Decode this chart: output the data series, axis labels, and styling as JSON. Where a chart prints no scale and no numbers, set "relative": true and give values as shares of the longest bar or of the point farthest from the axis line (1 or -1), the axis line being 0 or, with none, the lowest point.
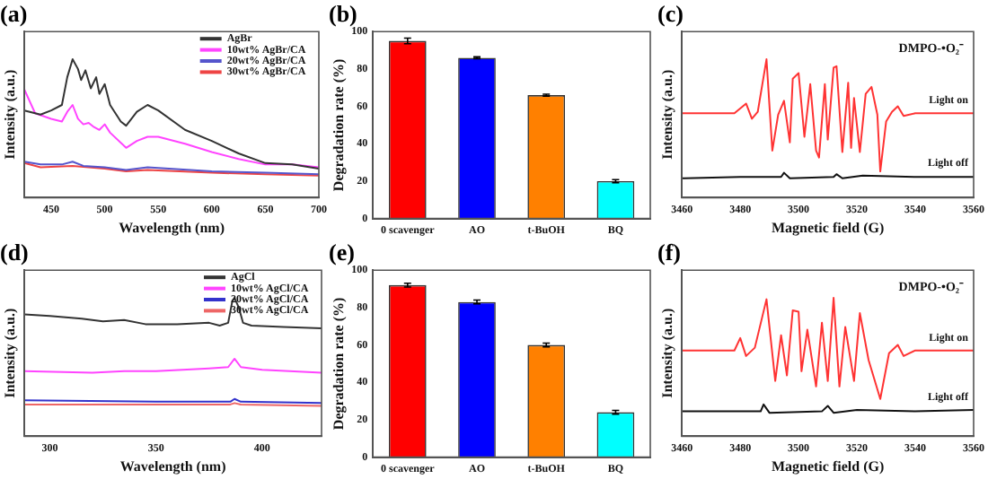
{
  "chart_data": [
    {
      "type": "line",
      "title": "(a)",
      "xlabel": "Wavelength (nm)",
      "ylabel": "Intensity (a.u.)",
      "relative": true,
      "xlim": [
        425,
        700
      ],
      "xticks": [
        450,
        500,
        550,
        600,
        650,
        700
      ],
      "legend": "top right",
      "marker": "none",
      "series": [
        {
          "name": "AgBr",
          "color": "#333333",
          "x": [
            425,
            440,
            450,
            460,
            465,
            470,
            475,
            478,
            482,
            487,
            492,
            495,
            500,
            505,
            515,
            520,
            530,
            540,
            550,
            575,
            600,
            625,
            650,
            675,
            700
          ],
          "values": [
            0.63,
            0.6,
            0.63,
            0.67,
            0.87,
            1.0,
            0.93,
            0.85,
            0.92,
            0.79,
            0.87,
            0.75,
            0.82,
            0.67,
            0.55,
            0.52,
            0.62,
            0.67,
            0.63,
            0.49,
            0.41,
            0.32,
            0.25,
            0.24,
            0.21
          ]
        },
        {
          "name": "10wt% AgBr/CA",
          "color": "#ff44ff",
          "x": [
            425,
            435,
            450,
            460,
            465,
            470,
            475,
            480,
            485,
            490,
            495,
            500,
            505,
            520,
            530,
            540,
            550,
            575,
            600,
            625,
            650,
            675,
            700
          ],
          "values": [
            0.78,
            0.61,
            0.57,
            0.55,
            0.62,
            0.67,
            0.57,
            0.53,
            0.54,
            0.51,
            0.49,
            0.53,
            0.47,
            0.36,
            0.41,
            0.44,
            0.44,
            0.39,
            0.33,
            0.28,
            0.24,
            0.24,
            0.22
          ]
        },
        {
          "name": "20wt% AgBr/CA",
          "color": "#5555cc",
          "x": [
            425,
            440,
            460,
            470,
            480,
            500,
            520,
            540,
            560,
            600,
            650,
            700
          ],
          "values": [
            0.26,
            0.24,
            0.24,
            0.26,
            0.23,
            0.22,
            0.2,
            0.22,
            0.21,
            0.19,
            0.18,
            0.17
          ]
        },
        {
          "name": "30wt% AgBr/CA",
          "color": "#ee4444",
          "x": [
            425,
            440,
            470,
            500,
            520,
            540,
            600,
            650,
            700
          ],
          "values": [
            0.25,
            0.22,
            0.23,
            0.21,
            0.19,
            0.2,
            0.18,
            0.17,
            0.16
          ]
        }
      ]
    },
    {
      "type": "bar",
      "title": "(b)",
      "ylabel": "Degradation rate (%)",
      "categories": [
        "0 scavenger",
        "AO",
        "t-BuOH",
        "BQ"
      ],
      "values": [
        95,
        86,
        66,
        20
      ],
      "errors": [
        1.5,
        0.5,
        0.5,
        0.8
      ],
      "colors": [
        "#ff0000",
        "#0000ff",
        "#ff8000",
        "#00ffff"
      ],
      "ylim": [
        0,
        100
      ],
      "yticks": [
        0,
        20,
        40,
        60,
        80,
        100
      ]
    },
    {
      "type": "line",
      "title": "(c)",
      "xlabel": "Magnetic field (G)",
      "ylabel": "Intensity (a.u.)",
      "relative": true,
      "xlim": [
        3460,
        3560
      ],
      "xticks": [
        3460,
        3480,
        3500,
        3520,
        3540,
        3560
      ],
      "marker": "none",
      "annotations": [
        "DMPO-•O₂⁻"
      ],
      "series": [
        {
          "name": "Light on",
          "color": "#ff3333",
          "x": [
            3460,
            3478,
            3482,
            3484,
            3486,
            3489,
            3491,
            3493,
            3495,
            3497,
            3498,
            3500,
            3502,
            3504,
            3506,
            3507,
            3509,
            3510,
            3512,
            3513,
            3515,
            3517,
            3518,
            3519,
            3521,
            3523,
            3525,
            3527,
            3528,
            3530,
            3532,
            3534,
            3536,
            3540,
            3560
          ],
          "values": [
            0.61,
            0.61,
            0.68,
            0.57,
            0.62,
            1.0,
            0.34,
            0.6,
            0.7,
            0.4,
            0.86,
            0.9,
            0.44,
            0.82,
            0.34,
            0.29,
            0.82,
            0.42,
            0.94,
            0.95,
            0.33,
            0.83,
            0.36,
            0.72,
            0.33,
            0.75,
            0.8,
            0.6,
            0.19,
            0.55,
            0.62,
            0.66,
            0.59,
            0.61,
            0.61
          ]
        },
        {
          "name": "Light off",
          "color": "#111111",
          "x": [
            3460,
            3480,
            3494,
            3495,
            3497,
            3512,
            3513,
            3515,
            3522,
            3540,
            3560
          ],
          "values": [
            0.14,
            0.15,
            0.15,
            0.18,
            0.14,
            0.15,
            0.17,
            0.14,
            0.16,
            0.15,
            0.15
          ]
        }
      ]
    },
    {
      "type": "line",
      "title": "(d)",
      "xlabel": "Wavelength (nm)",
      "ylabel": "Intensity (a.u.)",
      "relative": true,
      "xlim": [
        288,
        428
      ],
      "xticks": [
        300,
        350,
        400
      ],
      "legend": "top right",
      "marker": "none",
      "series": [
        {
          "name": "AgCl",
          "color": "#333333",
          "x": [
            288,
            300,
            315,
            325,
            335,
            345,
            360,
            375,
            380,
            384,
            386,
            387,
            389,
            391,
            395,
            410,
            428
          ],
          "values": [
            0.88,
            0.87,
            0.85,
            0.83,
            0.84,
            0.81,
            0.81,
            0.82,
            0.8,
            0.82,
            0.98,
            1.0,
            0.93,
            0.82,
            0.8,
            0.79,
            0.78
          ]
        },
        {
          "name": "10wt% AgCl/CA",
          "color": "#ff44ff",
          "x": [
            288,
            320,
            335,
            350,
            375,
            384,
            387,
            390,
            400,
            428
          ],
          "values": [
            0.47,
            0.46,
            0.47,
            0.47,
            0.49,
            0.5,
            0.56,
            0.5,
            0.48,
            0.46
          ]
        },
        {
          "name": "20wt% AgCl/CA",
          "color": "#3333cc",
          "x": [
            288,
            350,
            385,
            387,
            390,
            428
          ],
          "values": [
            0.26,
            0.25,
            0.25,
            0.27,
            0.25,
            0.24
          ]
        },
        {
          "name": "30wt% AgCl/CA",
          "color": "#ee6666",
          "x": [
            288,
            350,
            385,
            387,
            390,
            428
          ],
          "values": [
            0.23,
            0.23,
            0.23,
            0.24,
            0.23,
            0.22
          ]
        }
      ]
    },
    {
      "type": "bar",
      "title": "(e)",
      "ylabel": "Degradation rate (%)",
      "categories": [
        "0 scavenger",
        "AO",
        "t-BuOH",
        "BQ"
      ],
      "values": [
        92,
        83,
        60,
        24
      ],
      "errors": [
        1,
        1,
        1,
        1
      ],
      "colors": [
        "#ff0000",
        "#0000ff",
        "#ff8000",
        "#00ffff"
      ],
      "ylim": [
        0,
        100
      ],
      "yticks": [
        0,
        20,
        40,
        60,
        80,
        100
      ]
    },
    {
      "type": "line",
      "title": "(f)",
      "xlabel": "Magnetic field (G)",
      "ylabel": "Intensity (a.u.)",
      "relative": true,
      "xlim": [
        3460,
        3560
      ],
      "xticks": [
        3460,
        3480,
        3500,
        3520,
        3540,
        3560
      ],
      "marker": "none",
      "annotations": [
        "DMPO-•O₂⁻"
      ],
      "series": [
        {
          "name": "Light on",
          "color": "#ff3333",
          "x": [
            3460,
            3478,
            3480,
            3482,
            3485,
            3489,
            3492,
            3494,
            3496,
            3498,
            3500,
            3501,
            3503,
            3506,
            3508,
            3510,
            3512,
            3514,
            3516,
            3519,
            3521,
            3524,
            3528,
            3531,
            3534,
            3536,
            3540,
            3560
          ],
          "values": [
            0.62,
            0.62,
            0.71,
            0.58,
            0.64,
            0.99,
            0.4,
            0.73,
            0.44,
            0.91,
            0.9,
            0.47,
            0.77,
            0.36,
            0.82,
            0.4,
            1.0,
            0.36,
            0.79,
            0.4,
            0.89,
            0.55,
            0.27,
            0.6,
            0.66,
            0.58,
            0.62,
            0.62
          ]
        },
        {
          "name": "Light off",
          "color": "#111111",
          "x": [
            3460,
            3487,
            3488,
            3490,
            3508,
            3510,
            3512,
            3520,
            3540,
            3560
          ],
          "values": [
            0.18,
            0.18,
            0.23,
            0.17,
            0.18,
            0.22,
            0.17,
            0.19,
            0.18,
            0.19
          ]
        }
      ]
    }
  ]
}
